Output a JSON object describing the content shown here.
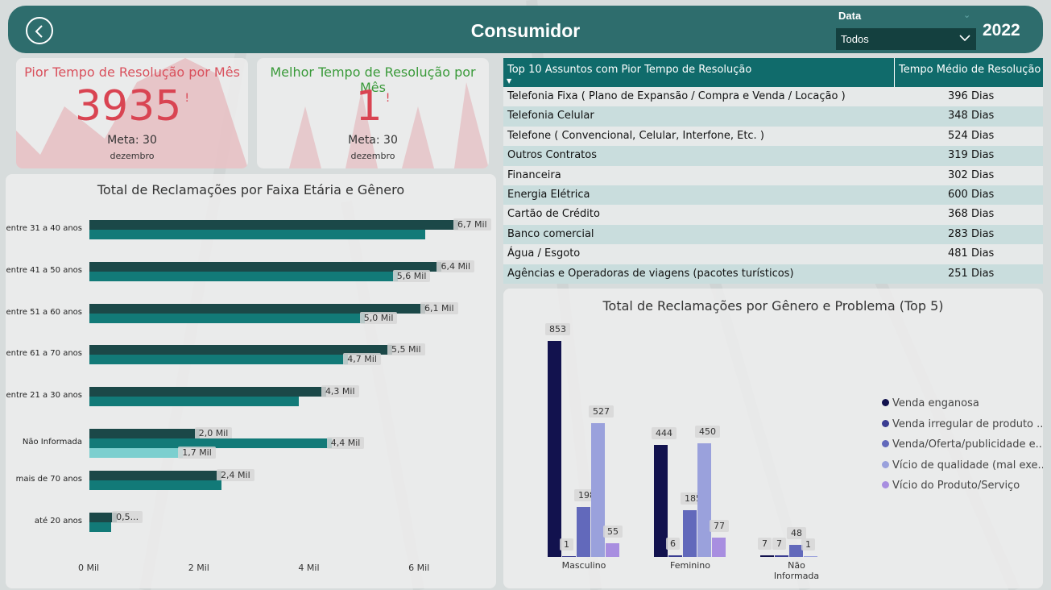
{
  "header": {
    "title": "Consumidor",
    "filter_label": "Data",
    "filter_value": "Todos",
    "year": "2022"
  },
  "kpis": {
    "worst": {
      "title": "Pior Tempo de Resolução por Mês",
      "value": "3935",
      "alert": "!",
      "meta": "Meta: 30",
      "month": "dezembro",
      "color": "#d94452"
    },
    "best": {
      "title": "Melhor Tempo de Resolução por Mês",
      "value": "1",
      "alert": "!",
      "meta": "Meta: 30",
      "month": "dezembro",
      "color": "#d94452",
      "title_color": "#3a9a3a"
    }
  },
  "colors": {
    "header": "#2e6d6d",
    "dark_bar": "#1b4848",
    "teal_bar": "#127a78",
    "light_bar": "#7ccfcf"
  },
  "age_chart": {
    "title": "Total de Reclamações por Faixa Etária e Gênero",
    "x_ticks": [
      "0 Mil",
      "2 Mil",
      "4 Mil",
      "6 Mil"
    ]
  },
  "chart_data": [
    {
      "type": "bar",
      "orientation": "horizontal",
      "title": "Total de Reclamações por Faixa Etária e Gênero",
      "categories": [
        "entre 31 a 40 anos",
        "entre 41 a 50 anos",
        "entre 51 a 60 anos",
        "entre 61 a 70 anos",
        "entre 21 a 30 anos",
        "Não Informada",
        "mais de 70 anos",
        "até 20 anos"
      ],
      "series": [
        {
          "values": [
            6.7,
            6.4,
            6.1,
            5.5,
            4.3,
            2.0,
            2.4,
            0.5
          ],
          "labels": [
            "6,7 Mil",
            "6,4 Mil",
            "6,1 Mil",
            "5,5 Mil",
            "4,3 Mil",
            "2,0 Mil",
            "2,4 Mil",
            "0,5..."
          ]
        },
        {
          "values": [
            6.1,
            5.6,
            5.0,
            4.7,
            3.8,
            4.4,
            2.4,
            0.4
          ],
          "labels": [
            "",
            "5,6 Mil",
            "5,0 Mil",
            "4,7 Mil",
            "",
            "4,4 Mil",
            "",
            ""
          ]
        },
        {
          "values": [
            null,
            null,
            null,
            null,
            null,
            1.7,
            null,
            null
          ],
          "labels": [
            "",
            "",
            "",
            "",
            "",
            "1,7 Mil",
            "",
            ""
          ]
        }
      ],
      "xlim": [
        0,
        7.1
      ],
      "unit": "Mil"
    },
    {
      "type": "bar",
      "title": "Total de Reclamações por Gênero e Problema (Top 5)",
      "categories": [
        "Masculino",
        "Feminino",
        "Não Informada"
      ],
      "series": [
        {
          "name": "Venda enganosa",
          "color": "#12124e",
          "values": [
            853,
            444,
            7
          ]
        },
        {
          "name": "Venda irregular de produto ...",
          "color": "#3a3d92",
          "values": [
            1,
            6,
            7
          ]
        },
        {
          "name": "Venda/Oferta/publicidade e...",
          "color": "#6269bb",
          "values": [
            198,
            185,
            48
          ]
        },
        {
          "name": "Vício de qualidade (mal exe...",
          "color": "#9aa1dc",
          "values": [
            527,
            450,
            1
          ]
        },
        {
          "name": "Vício do Produto/Serviço",
          "color": "#a88ee0",
          "values": [
            55,
            77,
            null
          ]
        }
      ],
      "ylim": [
        0,
        900
      ]
    }
  ],
  "table": {
    "col1": "Top 10 Assuntos com Pior Tempo de Resolução",
    "col2": "Tempo Médio de Resolução",
    "rows": [
      {
        "subject": "Telefonia Fixa ( Plano de Expansão / Compra e Venda / Locação )",
        "time": "396 Dias"
      },
      {
        "subject": "Telefonia Celular",
        "time": "348 Dias"
      },
      {
        "subject": "Telefone ( Convencional, Celular, Interfone, Etc. )",
        "time": "524 Dias"
      },
      {
        "subject": "Outros Contratos",
        "time": "319 Dias"
      },
      {
        "subject": "Financeira",
        "time": "302 Dias"
      },
      {
        "subject": "Energia Elétrica",
        "time": "600 Dias"
      },
      {
        "subject": "Cartão de Crédito",
        "time": "368 Dias"
      },
      {
        "subject": "Banco comercial",
        "time": "283 Dias"
      },
      {
        "subject": "Água / Esgoto",
        "time": "481 Dias"
      },
      {
        "subject": "Agências e Operadoras de viagens (pacotes turísticos)",
        "time": "251 Dias"
      }
    ]
  },
  "gender_chart": {
    "title": "Total de Reclamações por Gênero e Problema (Top 5)"
  }
}
